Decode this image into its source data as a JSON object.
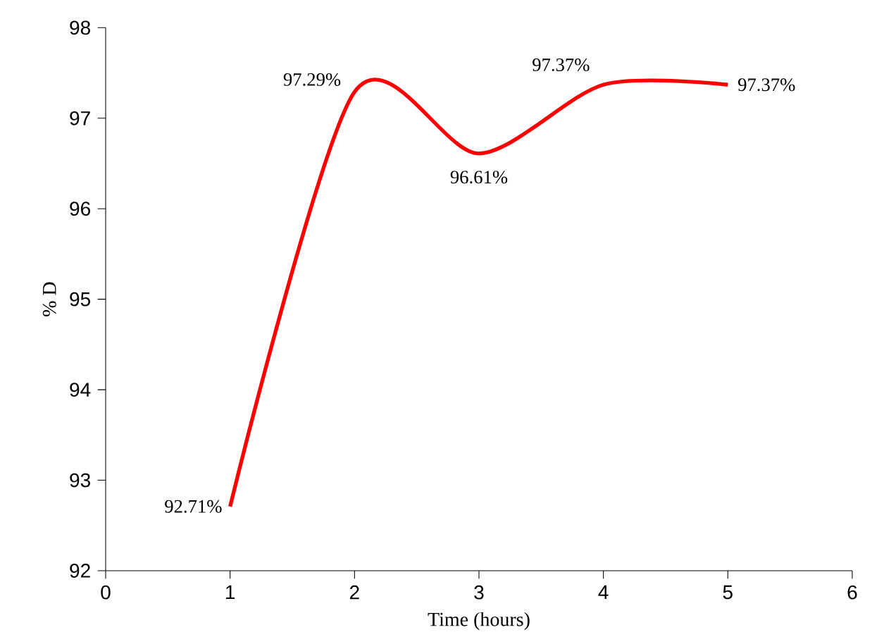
{
  "chart_data": {
    "type": "line",
    "xlabel": "Time (hours)",
    "ylabel": "% D",
    "x": [
      1,
      2,
      3,
      4,
      5
    ],
    "series": [
      {
        "color": "#ff0000",
        "values": [
          92.71,
          97.29,
          96.61,
          97.37,
          97.37
        ],
        "value_labels": [
          "92.71%",
          "97.29%",
          "96.61%",
          "97.37%",
          "97.37%"
        ]
      }
    ],
    "xlim": [
      0,
      6
    ],
    "xticks": [
      0,
      1,
      2,
      3,
      4,
      5,
      6
    ],
    "ylim": [
      92,
      98
    ],
    "yticks": [
      92,
      93,
      94,
      95,
      96,
      97,
      98
    ],
    "marker": "none",
    "line_style": "solid"
  }
}
